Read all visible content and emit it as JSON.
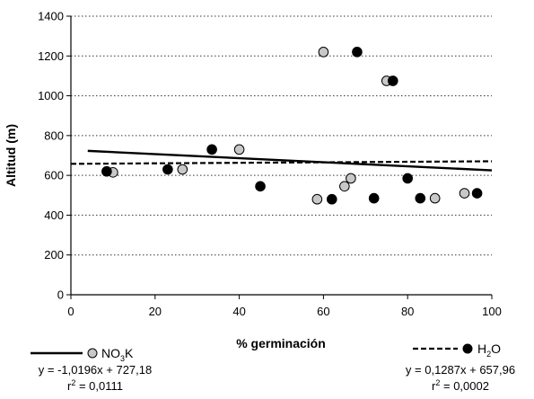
{
  "chart_data": {
    "type": "scatter",
    "xlabel": "% germinación",
    "ylabel": "Altitud (m)",
    "xlim": [
      0,
      100
    ],
    "ylim": [
      0,
      1400
    ],
    "xticks": [
      0,
      20,
      40,
      60,
      80,
      100
    ],
    "yticks": [
      0,
      200,
      400,
      600,
      800,
      1000,
      1200,
      1400
    ],
    "grid": "horizontal dotted",
    "series": [
      {
        "name": "NO3K",
        "label_main": "NO",
        "label_sub": "3",
        "label_tail": "K",
        "marker_color": "#c8c8c8",
        "points": [
          {
            "x": 10,
            "y": 615
          },
          {
            "x": 26.5,
            "y": 630
          },
          {
            "x": 40,
            "y": 730
          },
          {
            "x": 58.5,
            "y": 480
          },
          {
            "x": 60,
            "y": 1220
          },
          {
            "x": 65,
            "y": 545
          },
          {
            "x": 66.5,
            "y": 585
          },
          {
            "x": 75,
            "y": 1075
          },
          {
            "x": 86.5,
            "y": 485
          },
          {
            "x": 93.5,
            "y": 510
          }
        ],
        "trend": {
          "slope": -1.0196,
          "intercept": 727.18,
          "x_range": [
            4,
            100
          ],
          "style": "solid"
        },
        "equation": "y = -1,0196x + 727,18",
        "r2_label": "r",
        "r2_sup": "2",
        "r2_value": " = 0,0111"
      },
      {
        "name": "H2O",
        "label_main": "H",
        "label_sub": "2",
        "label_tail": "O",
        "marker_color": "#000000",
        "points": [
          {
            "x": 8.5,
            "y": 620
          },
          {
            "x": 23,
            "y": 630
          },
          {
            "x": 33.5,
            "y": 730
          },
          {
            "x": 45,
            "y": 545
          },
          {
            "x": 62,
            "y": 480
          },
          {
            "x": 68,
            "y": 1220
          },
          {
            "x": 72,
            "y": 485
          },
          {
            "x": 76.5,
            "y": 1075
          },
          {
            "x": 80,
            "y": 585
          },
          {
            "x": 83,
            "y": 485
          },
          {
            "x": 96.5,
            "y": 510
          }
        ],
        "trend": {
          "slope": 0.1287,
          "intercept": 657.96,
          "x_range": [
            0,
            100
          ],
          "style": "dashed"
        },
        "equation": "y = 0,1287x + 657,96",
        "r2_label": "r",
        "r2_sup": "2",
        "r2_value": " = 0,0002"
      }
    ]
  }
}
